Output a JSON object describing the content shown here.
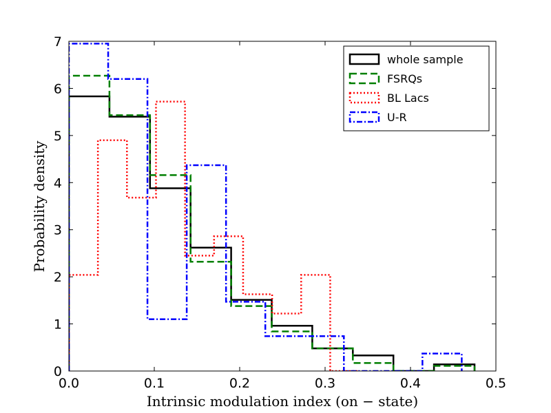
{
  "chart_data": {
    "type": "histogram-step",
    "title": "",
    "xlabel": "Intrinsic modulation index (on − state)",
    "ylabel": "Probability density",
    "xlim": [
      0.0,
      0.5
    ],
    "ylim": [
      0,
      7
    ],
    "xticks": [
      0.0,
      0.1,
      0.2,
      0.3,
      0.4,
      0.5
    ],
    "xtick_labels": [
      "0.0",
      "0.1",
      "0.2",
      "0.3",
      "0.4",
      "0.5"
    ],
    "yticks": [
      0,
      1,
      2,
      3,
      4,
      5,
      6,
      7
    ],
    "ytick_labels": [
      "0",
      "1",
      "2",
      "3",
      "4",
      "5",
      "6",
      "7"
    ],
    "legend_position": "top-right",
    "series": [
      {
        "name": "whole sample",
        "color": "#000000",
        "style": "solid",
        "edges": [
          0.0,
          0.0475,
          0.095,
          0.1425,
          0.19,
          0.2375,
          0.285,
          0.3325,
          0.38,
          0.4275,
          0.475
        ],
        "values": [
          5.83,
          5.4,
          3.88,
          2.62,
          1.51,
          0.96,
          0.48,
          0.33,
          0.0,
          0.14
        ]
      },
      {
        "name": "FSRQs",
        "color": "#007f00",
        "style": "dashed",
        "edges": [
          0.0,
          0.0475,
          0.095,
          0.1425,
          0.19,
          0.2375,
          0.285,
          0.3325,
          0.38,
          0.4275,
          0.475
        ],
        "values": [
          6.27,
          5.43,
          4.16,
          2.32,
          1.38,
          0.84,
          0.48,
          0.17,
          0.0,
          0.11
        ]
      },
      {
        "name": "BL Lacs",
        "color": "#ff0000",
        "style": "dotted",
        "edges": [
          0.0,
          0.034,
          0.068,
          0.102,
          0.136,
          0.17,
          0.204,
          0.238,
          0.272,
          0.306,
          0.34
        ],
        "values": [
          2.04,
          4.9,
          3.68,
          5.72,
          2.45,
          2.86,
          1.63,
          1.22,
          2.04,
          0.0
        ]
      },
      {
        "name": "U-R",
        "color": "#0000ff",
        "style": "dashdot",
        "edges": [
          0.0,
          0.046,
          0.092,
          0.138,
          0.184,
          0.23,
          0.276,
          0.322,
          0.368,
          0.414,
          0.46
        ],
        "values": [
          6.95,
          6.2,
          1.1,
          4.37,
          1.47,
          0.74,
          0.74,
          0.0,
          0.0,
          0.37
        ]
      }
    ]
  }
}
